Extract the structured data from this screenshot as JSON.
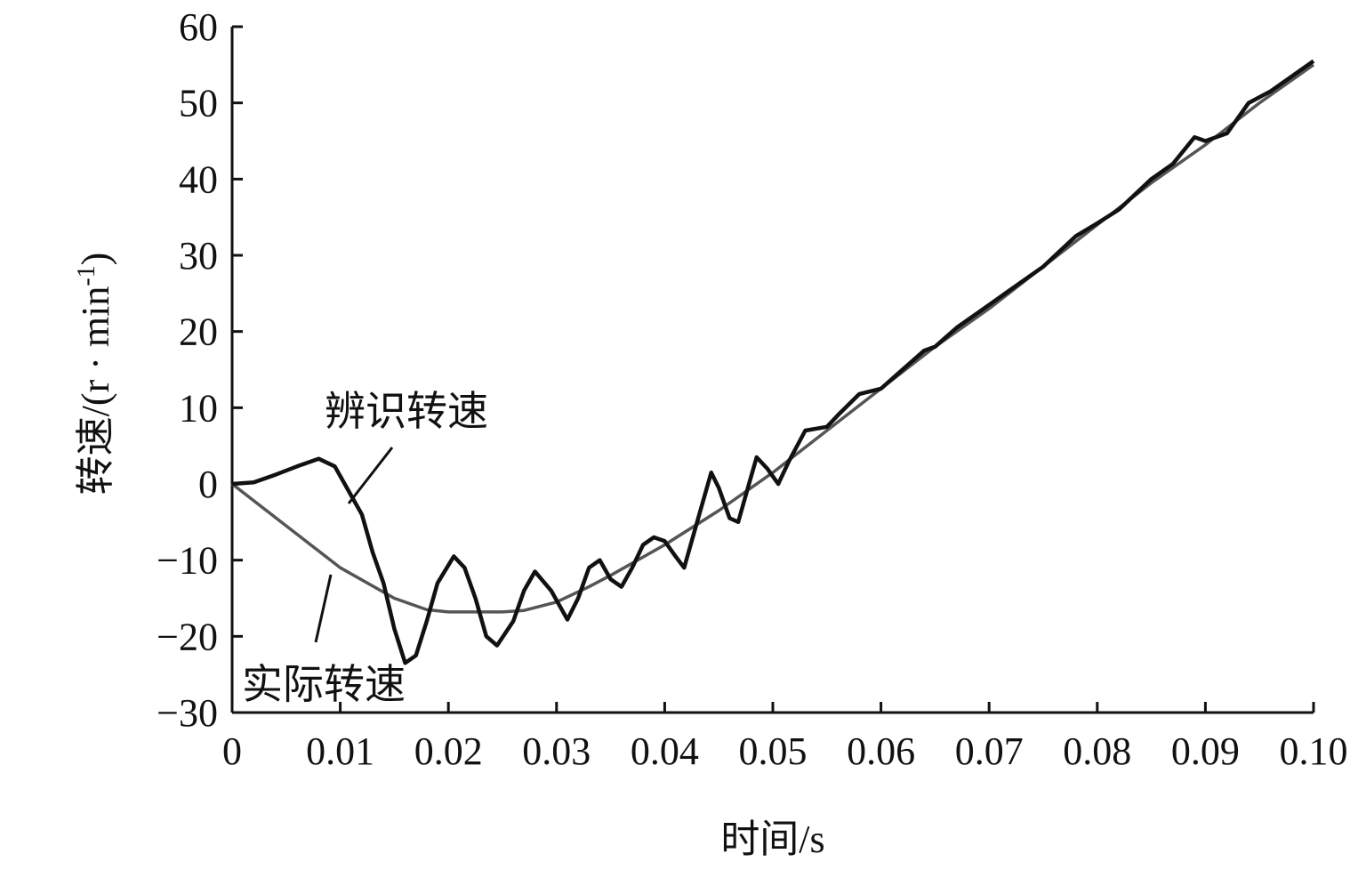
{
  "chart_data": {
    "type": "line",
    "title": "",
    "xlabel": "时间/s",
    "ylabel": "转速/(r · min",
    "ylabel_sup": "-1",
    "ylabel_end": ")",
    "xlim": [
      0,
      0.1
    ],
    "ylim": [
      -30,
      60
    ],
    "x_ticks": [
      0,
      0.01,
      0.02,
      0.03,
      0.04,
      0.05,
      0.06,
      0.07,
      0.08,
      0.09,
      0.1
    ],
    "x_tick_labels": [
      "0",
      "0.01",
      "0.02",
      "0.03",
      "0.04",
      "0.05",
      "0.06",
      "0.07",
      "0.08",
      "0.09",
      "0.10"
    ],
    "y_ticks": [
      -30,
      -20,
      -10,
      0,
      10,
      20,
      30,
      40,
      50,
      60
    ],
    "y_tick_labels": [
      "−30",
      "−20",
      "−10",
      "0",
      "10",
      "20",
      "30",
      "40",
      "50",
      "60"
    ],
    "grid": false,
    "legend": "none",
    "series": [
      {
        "name": "辨识转速",
        "color": "#111111",
        "points": [
          [
            0,
            0
          ],
          [
            0.002,
            0.2
          ],
          [
            0.004,
            1.2
          ],
          [
            0.006,
            2.3
          ],
          [
            0.008,
            3.3
          ],
          [
            0.0095,
            2.3
          ],
          [
            0.011,
            -1.5
          ],
          [
            0.012,
            -4
          ],
          [
            0.013,
            -9
          ],
          [
            0.014,
            -13
          ],
          [
            0.015,
            -19
          ],
          [
            0.016,
            -23.5
          ],
          [
            0.017,
            -22.5
          ],
          [
            0.018,
            -18
          ],
          [
            0.019,
            -13
          ],
          [
            0.0205,
            -9.5
          ],
          [
            0.0215,
            -11
          ],
          [
            0.0225,
            -15
          ],
          [
            0.0235,
            -20
          ],
          [
            0.0245,
            -21.2
          ],
          [
            0.026,
            -18
          ],
          [
            0.027,
            -14
          ],
          [
            0.028,
            -11.5
          ],
          [
            0.0295,
            -14
          ],
          [
            0.031,
            -17.8
          ],
          [
            0.032,
            -15
          ],
          [
            0.033,
            -11
          ],
          [
            0.034,
            -10
          ],
          [
            0.035,
            -12.5
          ],
          [
            0.036,
            -13.5
          ],
          [
            0.037,
            -11
          ],
          [
            0.038,
            -8
          ],
          [
            0.039,
            -7
          ],
          [
            0.04,
            -7.5
          ],
          [
            0.041,
            -9.5
          ],
          [
            0.0418,
            -11
          ],
          [
            0.043,
            -5
          ],
          [
            0.0443,
            1.5
          ],
          [
            0.045,
            -0.5
          ],
          [
            0.046,
            -4.5
          ],
          [
            0.0468,
            -5
          ],
          [
            0.0478,
            0
          ],
          [
            0.0485,
            3.5
          ],
          [
            0.0495,
            2
          ],
          [
            0.0505,
            0
          ],
          [
            0.0515,
            3
          ],
          [
            0.053,
            7
          ],
          [
            0.055,
            7.5
          ],
          [
            0.056,
            9
          ],
          [
            0.058,
            11.8
          ],
          [
            0.06,
            12.5
          ],
          [
            0.062,
            15
          ],
          [
            0.064,
            17.5
          ],
          [
            0.065,
            18
          ],
          [
            0.067,
            20.5
          ],
          [
            0.07,
            23.5
          ],
          [
            0.072,
            25.5
          ],
          [
            0.075,
            28.5
          ],
          [
            0.078,
            32.5
          ],
          [
            0.08,
            34.2
          ],
          [
            0.082,
            36
          ],
          [
            0.085,
            40
          ],
          [
            0.087,
            42
          ],
          [
            0.089,
            45.5
          ],
          [
            0.09,
            45
          ],
          [
            0.092,
            46
          ],
          [
            0.094,
            50
          ],
          [
            0.096,
            51.5
          ],
          [
            0.098,
            53.5
          ],
          [
            0.1,
            55.5
          ]
        ]
      },
      {
        "name": "实际转速",
        "color": "#555555",
        "points": [
          [
            0,
            0
          ],
          [
            0.005,
            -5.5
          ],
          [
            0.01,
            -11
          ],
          [
            0.015,
            -15
          ],
          [
            0.018,
            -16.5
          ],
          [
            0.02,
            -16.8
          ],
          [
            0.025,
            -16.8
          ],
          [
            0.027,
            -16.6
          ],
          [
            0.03,
            -15.5
          ],
          [
            0.033,
            -13.5
          ],
          [
            0.035,
            -12
          ],
          [
            0.04,
            -8
          ],
          [
            0.045,
            -3.5
          ],
          [
            0.05,
            1.5
          ],
          [
            0.055,
            7
          ],
          [
            0.06,
            12.5
          ],
          [
            0.065,
            18
          ],
          [
            0.07,
            23
          ],
          [
            0.075,
            28.5
          ],
          [
            0.08,
            34
          ],
          [
            0.085,
            39.5
          ],
          [
            0.09,
            44.5
          ],
          [
            0.095,
            50
          ],
          [
            0.1,
            55
          ]
        ]
      }
    ],
    "annotations": [
      {
        "text": "辨识转速",
        "target_series": "辨识转速"
      },
      {
        "text": "实际转速",
        "target_series": "实际转速"
      }
    ]
  }
}
